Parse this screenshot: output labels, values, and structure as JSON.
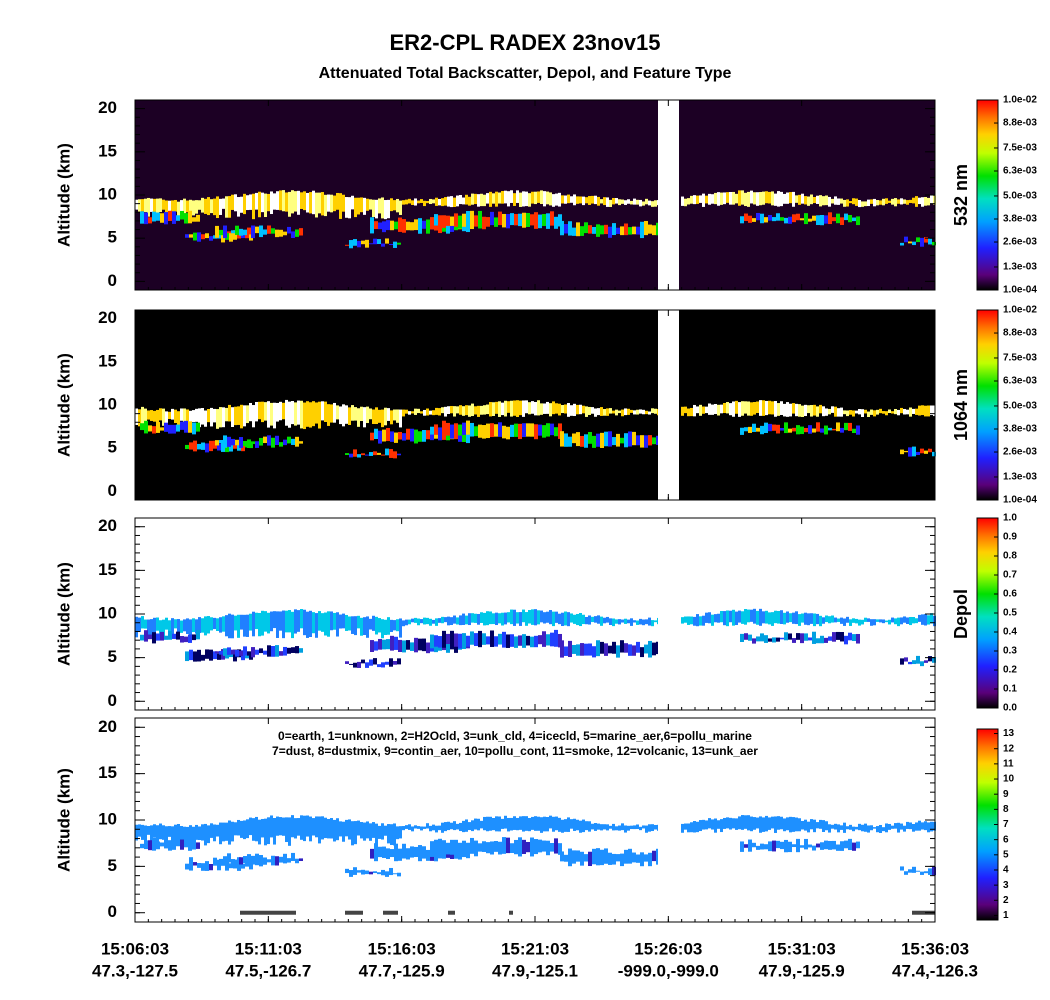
{
  "chart_data": [
    {
      "type": "heatmap",
      "title": "ER2-CPL RADEX 23nov15",
      "subtitle": "Attenuated Total Backscatter, Depol, and Feature Type",
      "ylabel": "Altitude (km)",
      "ylim": [
        -1,
        21
      ],
      "yticks": [
        0,
        5,
        10,
        15,
        20
      ],
      "colorbar": {
        "label": "532 nm",
        "lim": [
          0.0001,
          0.01
        ],
        "ticks": [
          {
            "value": 0.0001,
            "label": "1.0e-04"
          },
          {
            "value": 0.0013,
            "label": "1.3e-03"
          },
          {
            "value": 0.0026,
            "label": "2.6e-03"
          },
          {
            "value": 0.0038,
            "label": "3.8e-03"
          },
          {
            "value": 0.005,
            "label": "5.0e-03"
          },
          {
            "value": 0.0063,
            "label": "6.3e-03"
          },
          {
            "value": 0.0075,
            "label": "7.5e-03"
          },
          {
            "value": 0.0088,
            "label": "8.8e-03"
          },
          {
            "value": 0.01,
            "label": "1.0e-02"
          }
        ]
      }
    },
    {
      "type": "heatmap",
      "ylabel": "Altitude (km)",
      "ylim": [
        -1,
        21
      ],
      "yticks": [
        0,
        5,
        10,
        15,
        20
      ],
      "colorbar": {
        "label": "1064 nm",
        "lim": [
          0.0001,
          0.01
        ],
        "ticks": [
          {
            "value": 0.0001,
            "label": "1.0e-04"
          },
          {
            "value": 0.0013,
            "label": "1.3e-03"
          },
          {
            "value": 0.0026,
            "label": "2.6e-03"
          },
          {
            "value": 0.0038,
            "label": "3.8e-03"
          },
          {
            "value": 0.005,
            "label": "5.0e-03"
          },
          {
            "value": 0.0063,
            "label": "6.3e-03"
          },
          {
            "value": 0.0075,
            "label": "7.5e-03"
          },
          {
            "value": 0.0088,
            "label": "8.8e-03"
          },
          {
            "value": 0.01,
            "label": "1.0e-02"
          }
        ]
      }
    },
    {
      "type": "heatmap",
      "ylabel": "Altitude (km)",
      "ylim": [
        -1,
        21
      ],
      "yticks": [
        0,
        5,
        10,
        15,
        20
      ],
      "colorbar": {
        "label": "Depol",
        "lim": [
          0,
          1
        ],
        "ticks": [
          {
            "value": 0,
            "label": "0.0"
          },
          0.1,
          0.2,
          0.3,
          0.4,
          0.5,
          0.6,
          0.7,
          0.8,
          0.9,
          {
            "value": 1,
            "label": "1.0"
          }
        ]
      }
    },
    {
      "type": "heatmap",
      "ylabel": "Altitude (km)",
      "ylim": [
        -1,
        21
      ],
      "yticks": [
        0,
        5,
        10,
        15,
        20
      ],
      "annotations": [
        "0=earth, 1=unknown, 2=H2Ocld, 3=unk_cld, 4=icecld, 5=marine_aer,6=pollu_marine",
        "7=dust, 8=dustmix, 9=contin_aer, 10=pollu_cont, 11=smoke, 12=volcanic, 13=unk_aer"
      ],
      "colorbar": {
        "lim": [
          0.7,
          13.3
        ],
        "ticks": [
          1,
          2,
          3,
          4,
          5,
          6,
          7,
          8,
          9,
          10,
          11,
          12,
          13
        ]
      },
      "categories": [
        "15:06:03",
        "15:11:03",
        "15:16:03",
        "15:21:03",
        "15:26:03",
        "15:31:03",
        "15:36:03"
      ],
      "locations": [
        "47.3,-127.5",
        "47.5,-126.7",
        "47.7,-125.9",
        "47.9,-125.1",
        "-999.0,-999.0",
        "47.9,-125.9",
        "47.4,-126.3"
      ]
    }
  ]
}
